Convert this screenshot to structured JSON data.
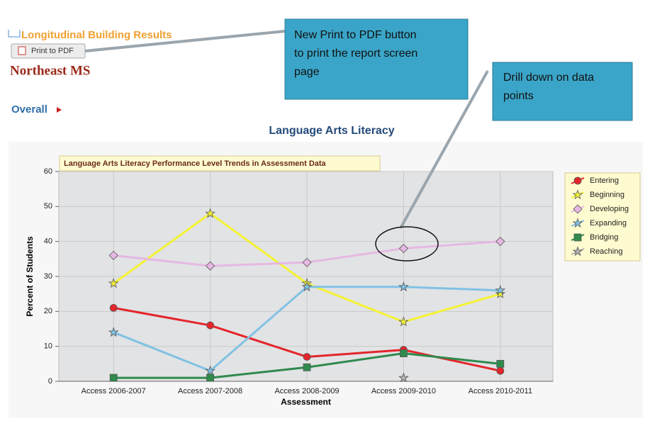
{
  "header": {
    "section": "Longitudinal Building Results",
    "print_button": "Print to PDF",
    "school": "Northeast MS",
    "nav": "Overall",
    "heading": "Language Arts Literacy"
  },
  "callouts": [
    {
      "lines": [
        "New Print to PDF button",
        "to print the report screen",
        "page"
      ]
    },
    {
      "lines": [
        "Drill down on data",
        "points"
      ]
    }
  ],
  "chart_data": {
    "type": "line",
    "title": "Language Arts Literacy Performance Level Trends in Assessment Data",
    "x_label": "Assessment",
    "y_label": "Percent of Students",
    "categories": [
      "Access 2006-2007",
      "Access 2007-2008",
      "Access 2008-2009",
      "Access 2009-2010",
      "Access 2010-2011"
    ],
    "series": [
      {
        "name": "Entering",
        "color": "#e3262b",
        "marker": "circle",
        "values": [
          21,
          16,
          7,
          9,
          3
        ]
      },
      {
        "name": "Beginning",
        "color": "#f4f233",
        "marker": "star",
        "values": [
          28,
          48,
          28,
          17,
          25
        ]
      },
      {
        "name": "Developing",
        "color": "#e6b8e3",
        "marker": "diamond",
        "values": [
          36,
          33,
          34,
          38,
          40
        ]
      },
      {
        "name": "Expanding",
        "color": "#80c2e4",
        "marker": "star",
        "values": [
          14,
          3,
          27,
          27,
          26
        ]
      },
      {
        "name": "Bridging",
        "color": "#2f8a4c",
        "marker": "square",
        "values": [
          1,
          1,
          4,
          8,
          5
        ]
      },
      {
        "name": "Reaching",
        "color": "#b0b0b0",
        "marker": "star",
        "values": [
          null,
          null,
          null,
          1,
          null
        ]
      }
    ],
    "ylim": [
      0,
      60
    ],
    "yticks": [
      0,
      10,
      20,
      30,
      40,
      50,
      60
    ],
    "grid": true,
    "legend": "right"
  }
}
